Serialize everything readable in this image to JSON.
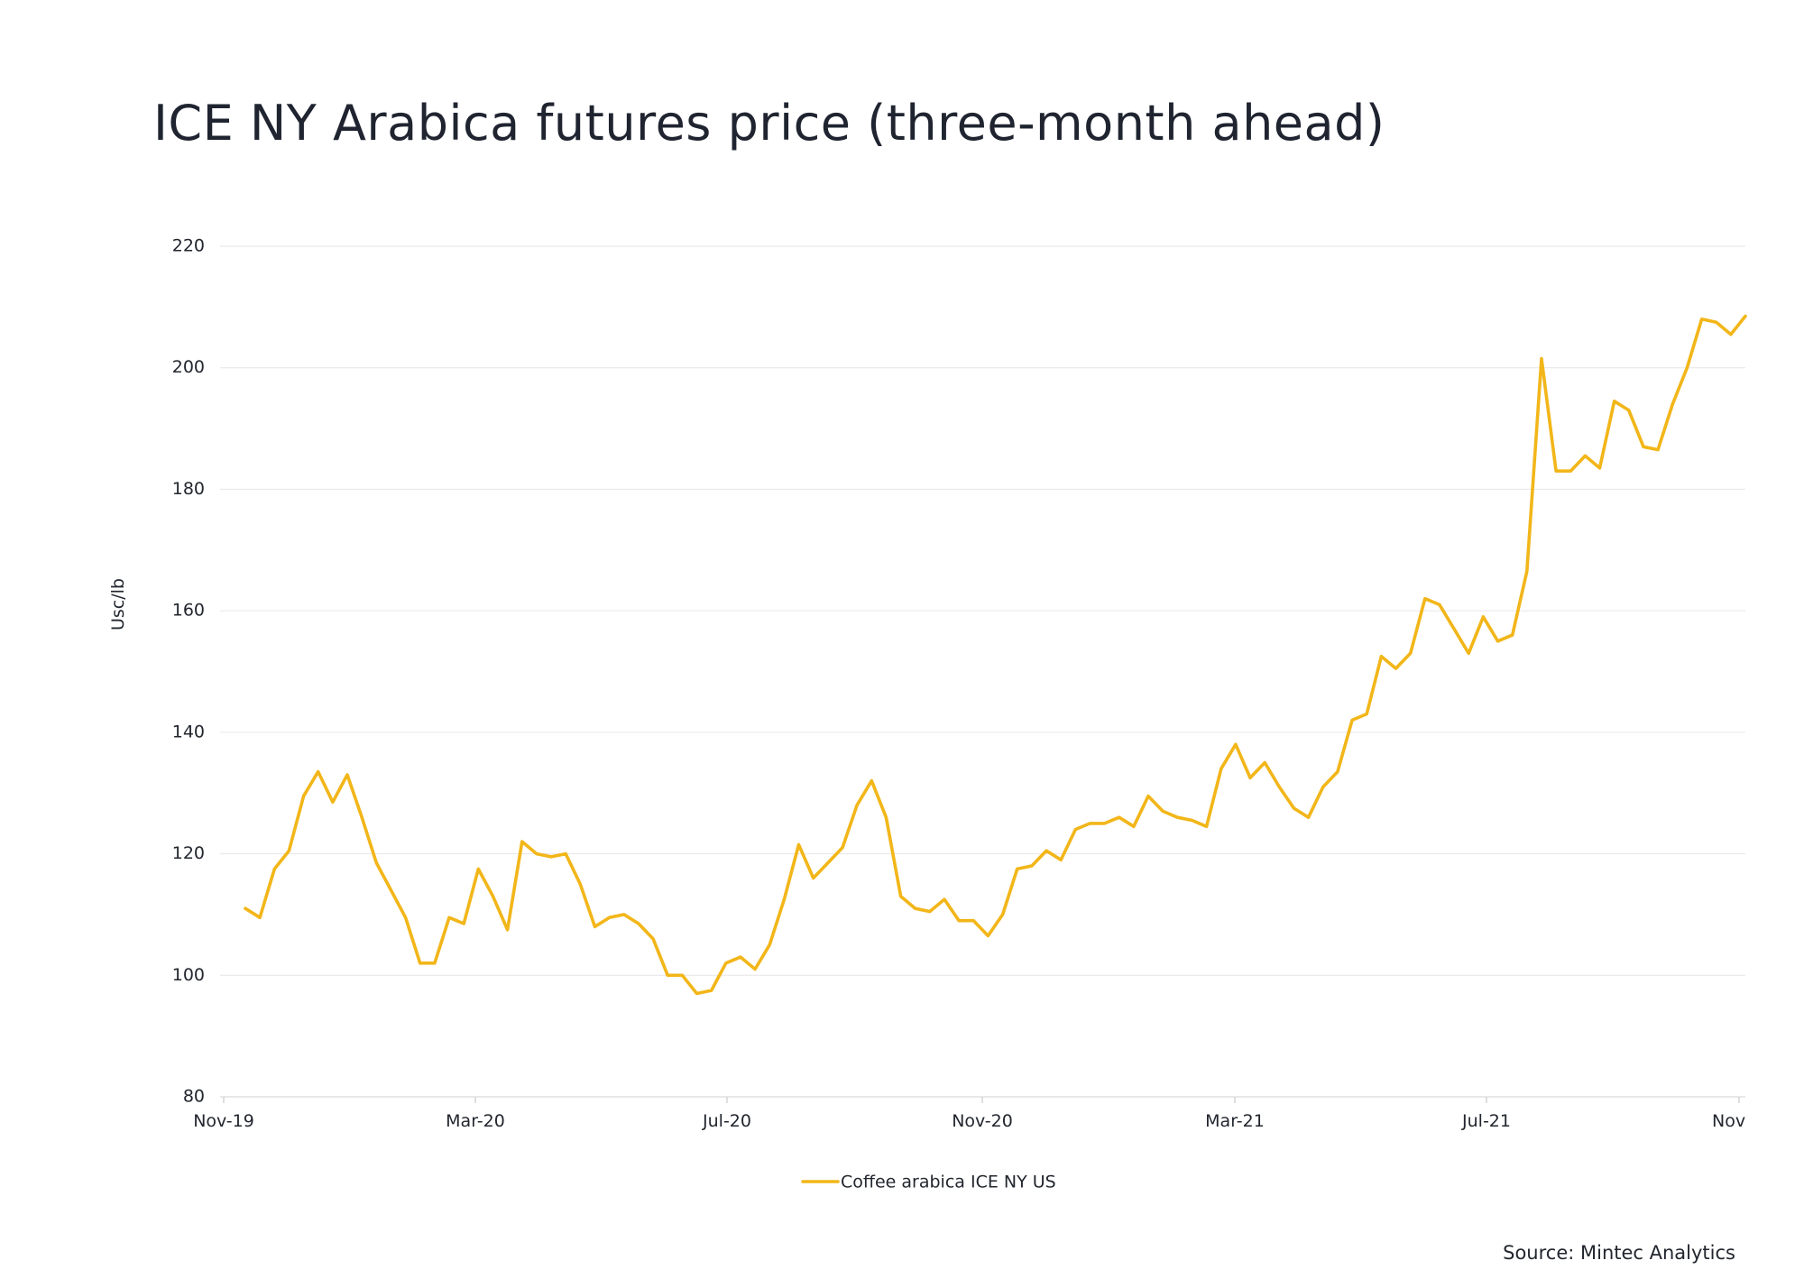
{
  "chart_data": {
    "type": "line",
    "title": "ICE NY Arabica futures price (three-month ahead)",
    "ylabel": "Usc/lb",
    "xlabel": "",
    "ylim": [
      80,
      220
    ],
    "yticks": [
      80,
      100,
      120,
      140,
      160,
      180,
      200,
      220
    ],
    "xtick_labels": [
      "Nov-19",
      "Mar-20",
      "Jul-20",
      "Nov-20",
      "Mar-21",
      "Jul-21",
      "Nov"
    ],
    "grid": "horizontal",
    "legend_position": "bottom-center",
    "source": "Source: Mintec Analytics",
    "series": [
      {
        "name": "Coffee arabica ICE NY US",
        "color": "#f2b619",
        "values": [
          111.0,
          109.5,
          117.5,
          120.5,
          129.5,
          133.5,
          128.5,
          133.0,
          126.0,
          118.5,
          114.0,
          109.5,
          102.0,
          102.0,
          109.5,
          108.5,
          117.5,
          113.0,
          107.5,
          122.0,
          120.0,
          119.5,
          120.0,
          115.0,
          108.0,
          109.5,
          110.0,
          108.5,
          106.0,
          100.0,
          100.0,
          97.0,
          97.5,
          102.0,
          103.0,
          101.0,
          105.0,
          112.5,
          121.5,
          116.0,
          118.5,
          121.0,
          128.0,
          132.0,
          126.0,
          113.0,
          111.0,
          110.5,
          112.5,
          109.0,
          109.0,
          106.5,
          110.0,
          117.5,
          118.0,
          120.5,
          119.0,
          124.0,
          125.0,
          125.0,
          126.0,
          124.5,
          129.5,
          127.0,
          126.0,
          125.5,
          124.5,
          134.0,
          138.0,
          132.5,
          135.0,
          131.0,
          127.5,
          126.0,
          131.0,
          133.5,
          142.0,
          143.0,
          152.5,
          150.5,
          153.0,
          162.0,
          161.0,
          157.0,
          153.0,
          159.0,
          155.0,
          156.0,
          166.5,
          201.5,
          183.0,
          183.0,
          185.5,
          183.5,
          194.5,
          193.0,
          187.0,
          186.5,
          194.0,
          200.0,
          208.0,
          207.5,
          205.5,
          208.5
        ]
      }
    ]
  }
}
